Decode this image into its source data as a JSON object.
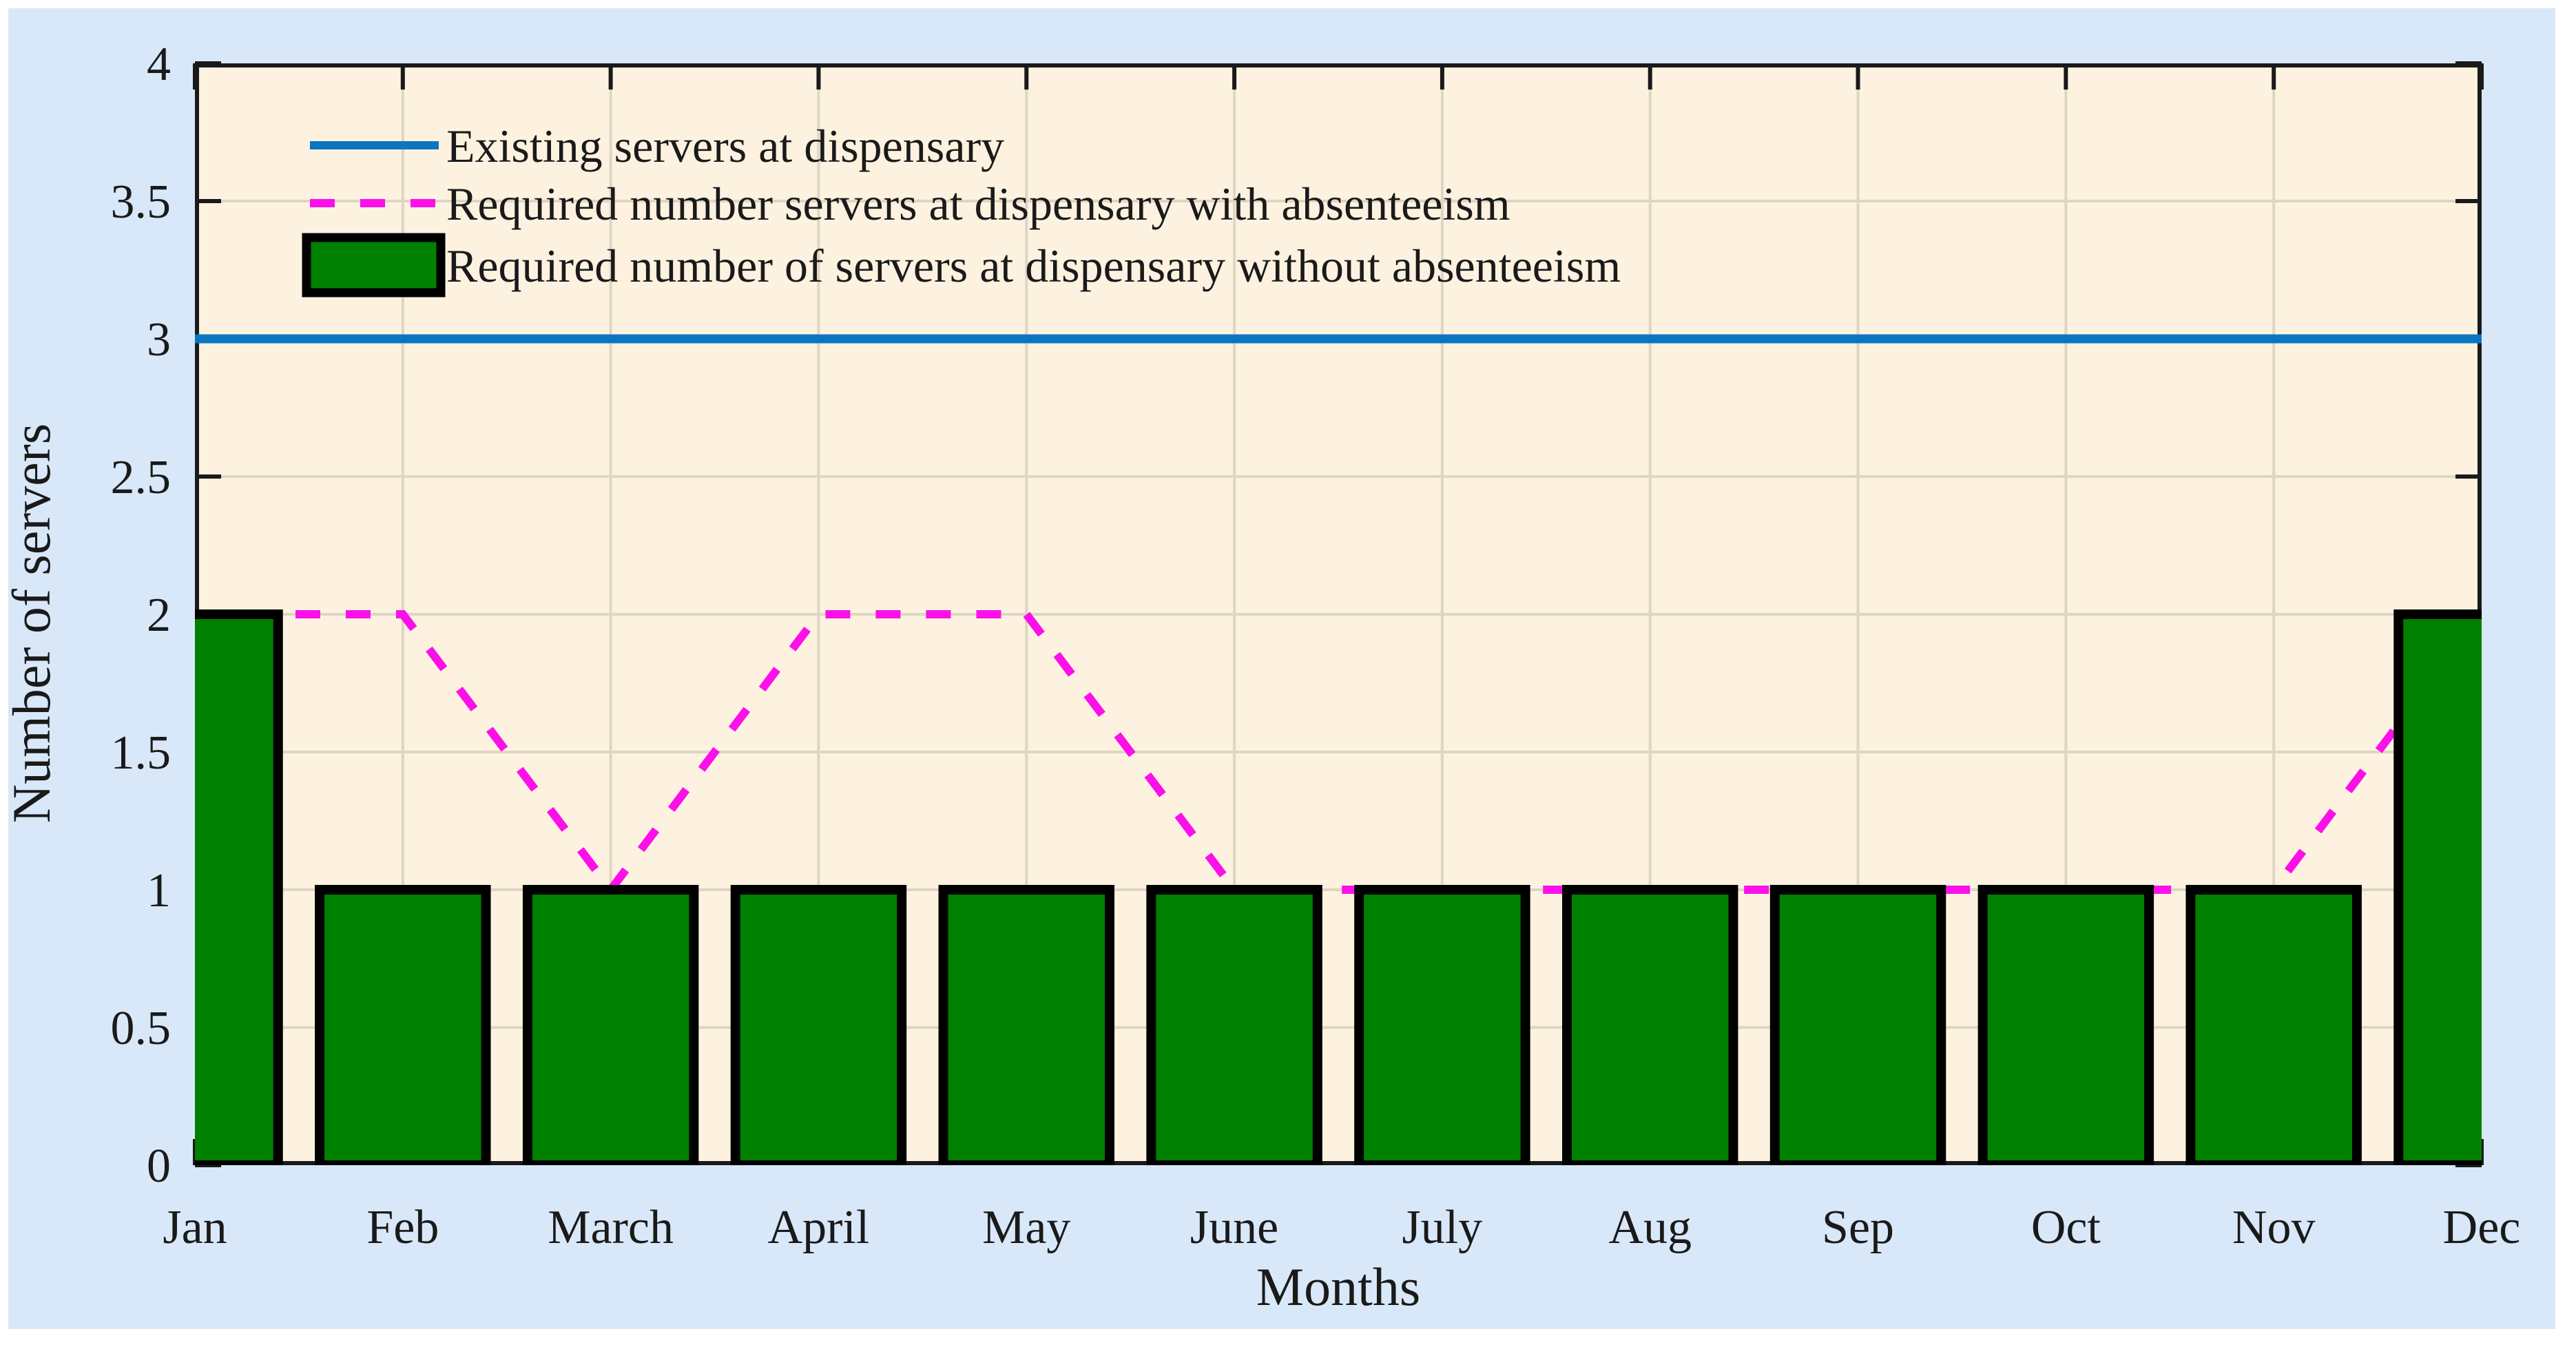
{
  "figure": {
    "background": "#ffffff",
    "panel_color": "#d9e8f8",
    "plot_background": "#fdf2e0",
    "grid_color": "#ded5c2",
    "axis_color": "#1a1a1a",
    "text_color": "#1a1a1a",
    "bar_border_color": "#000000"
  },
  "chart_data": {
    "type": "bar",
    "title": "",
    "xlabel": "Months",
    "ylabel": "Number of servers",
    "categories": [
      "Jan",
      "Feb",
      "March",
      "April",
      "May",
      "June",
      "July",
      "Aug",
      "Sep",
      "Oct",
      "Nov",
      "Dec"
    ],
    "ylim": [
      0,
      4
    ],
    "ytick_step": 0.5,
    "ytick_labels": [
      "0",
      "0.5",
      "1",
      "1.5",
      "2",
      "2.5",
      "3",
      "3.5",
      "4"
    ],
    "grid": true,
    "legend_position": "top-left",
    "series": [
      {
        "name": "Existing servers at dispensary",
        "type": "line",
        "style": "solid",
        "color": "#0a75c0",
        "values": [
          3,
          3,
          3,
          3,
          3,
          3,
          3,
          3,
          3,
          3,
          3,
          3
        ]
      },
      {
        "name": "Required number servers at dispensary with absenteeism",
        "type": "line",
        "style": "dashed",
        "color": "#fb10e9",
        "values": [
          2,
          2,
          1,
          2,
          2,
          1,
          1,
          1,
          1,
          1,
          1,
          2
        ]
      },
      {
        "name": "Required number of servers at dispensary without absenteeism",
        "type": "bar",
        "color": "#008000",
        "values": [
          2,
          1,
          1,
          1,
          1,
          1,
          1,
          1,
          1,
          1,
          1,
          2
        ]
      }
    ]
  }
}
